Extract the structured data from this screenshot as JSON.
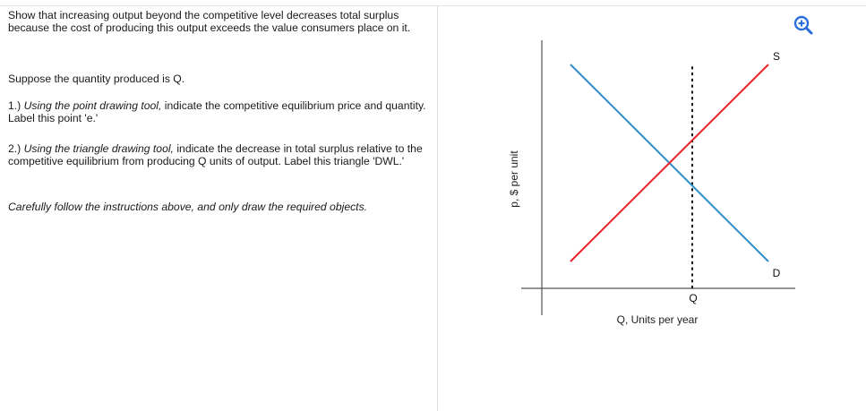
{
  "question": {
    "intro": "Show that increasing output beyond the competitive level decreases total surplus because the cost of producing this output exceeds the value consumers place on it.",
    "suppose": "Suppose the quantity produced is Q.",
    "step1": {
      "number": "1.) ",
      "tool_phrase": "Using the point drawing tool,",
      "rest": " indicate the competitive equilibrium price and quantity.  Label this point 'e.'"
    },
    "step2": {
      "number": "2.) ",
      "tool_phrase": "Using the triangle drawing tool,",
      "rest": " indicate the decrease in total surplus relative to the competitive equilibrium from producing Q units of output. Label this triangle 'DWL.'"
    },
    "note": "Carefully follow the instructions above, and only draw the required objects."
  },
  "graph": {
    "y_axis_label": "p, $ per unit",
    "x_axis_label": "Q, Units per year",
    "supply_label": "S",
    "demand_label": "D",
    "q_marker_label": "Q",
    "supply_color": "#e8232a",
    "demand_color": "#2f8ec9",
    "axis_color": "#555555",
    "zoom_icon": "zoom-in-icon",
    "zoom_color": "#2a6edb"
  }
}
